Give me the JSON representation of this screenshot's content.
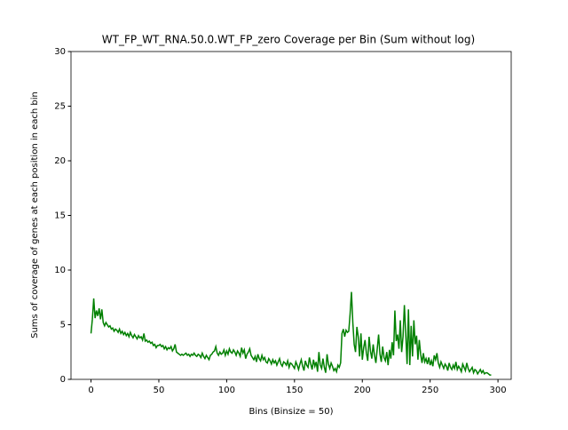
{
  "chart_data": {
    "type": "line",
    "title": "WT_FP_WT_RNA.50.0.WT_FP_zero Coverage per Bin (Sum without log)",
    "x_label": "Bins (Binsize = 50)",
    "y_label": "Sums of coverage of genes at each position in each bin",
    "xlim": [
      -14.75,
      309.75
    ],
    "ylim": [
      0,
      30
    ],
    "xticks": [
      0,
      50,
      100,
      150,
      200,
      250,
      300
    ],
    "yticks": [
      0,
      5,
      10,
      15,
      20,
      25,
      30
    ],
    "x": [
      0,
      1,
      2,
      3,
      4,
      5,
      6,
      7,
      8,
      9,
      10,
      11,
      12,
      13,
      14,
      15,
      16,
      17,
      18,
      19,
      20,
      21,
      22,
      23,
      24,
      25,
      26,
      27,
      28,
      29,
      30,
      31,
      32,
      33,
      34,
      35,
      36,
      37,
      38,
      39,
      40,
      41,
      42,
      43,
      44,
      45,
      46,
      47,
      48,
      49,
      50,
      51,
      52,
      53,
      54,
      55,
      56,
      57,
      58,
      59,
      60,
      61,
      62,
      63,
      64,
      65,
      66,
      67,
      68,
      69,
      70,
      71,
      72,
      73,
      74,
      75,
      76,
      77,
      78,
      79,
      80,
      81,
      82,
      83,
      84,
      85,
      86,
      87,
      88,
      89,
      90,
      91,
      92,
      93,
      94,
      95,
      96,
      97,
      98,
      99,
      100,
      101,
      102,
      103,
      104,
      105,
      106,
      107,
      108,
      109,
      110,
      111,
      112,
      113,
      114,
      115,
      116,
      117,
      118,
      119,
      120,
      121,
      122,
      123,
      124,
      125,
      126,
      127,
      128,
      129,
      130,
      131,
      132,
      133,
      134,
      135,
      136,
      137,
      138,
      139,
      140,
      141,
      142,
      143,
      144,
      145,
      146,
      147,
      148,
      149,
      150,
      151,
      152,
      153,
      154,
      155,
      156,
      157,
      158,
      159,
      160,
      161,
      162,
      163,
      164,
      165,
      166,
      167,
      168,
      169,
      170,
      171,
      172,
      173,
      174,
      175,
      176,
      177,
      178,
      179,
      180,
      181,
      182,
      183,
      184,
      185,
      186,
      187,
      188,
      189,
      190,
      191,
      192,
      193,
      194,
      195,
      196,
      197,
      198,
      199,
      200,
      201,
      202,
      203,
      204,
      205,
      206,
      207,
      208,
      209,
      210,
      211,
      212,
      213,
      214,
      215,
      216,
      217,
      218,
      219,
      220,
      221,
      222,
      223,
      224,
      225,
      226,
      227,
      228,
      229,
      230,
      231,
      232,
      233,
      234,
      235,
      236,
      237,
      238,
      239,
      240,
      241,
      242,
      243,
      244,
      245,
      246,
      247,
      248,
      249,
      250,
      251,
      252,
      253,
      254,
      255,
      256,
      257,
      258,
      259,
      260,
      261,
      262,
      263,
      264,
      265,
      266,
      267,
      268,
      269,
      270,
      271,
      272,
      273,
      274,
      275,
      276,
      277,
      278,
      279,
      280,
      281,
      282,
      283,
      284,
      285,
      286,
      287,
      288,
      289,
      290,
      291,
      292,
      293,
      294,
      295
    ],
    "series": [
      {
        "color": "#008000",
        "values": [
          4.2,
          5.5,
          7.4,
          5.6,
          6.3,
          5.8,
          6.5,
          5.5,
          6.4,
          5.2,
          4.9,
          5.2,
          5.0,
          4.8,
          4.9,
          4.6,
          4.7,
          4.4,
          4.6,
          4.5,
          4.3,
          4.6,
          4.2,
          4.4,
          4.1,
          4.3,
          4.0,
          4.2,
          3.9,
          4.3,
          4.0,
          3.8,
          4.1,
          3.9,
          3.7,
          4.0,
          3.8,
          3.9,
          3.6,
          4.2,
          3.5,
          3.6,
          3.4,
          3.5,
          3.3,
          3.4,
          3.1,
          3.2,
          2.9,
          3.1,
          3.1,
          3.2,
          3.0,
          3.1,
          2.8,
          3.0,
          2.7,
          2.9,
          2.8,
          3.0,
          2.6,
          2.8,
          3.2,
          2.5,
          2.4,
          2.3,
          2.2,
          2.3,
          2.2,
          2.3,
          2.4,
          2.2,
          2.3,
          2.1,
          2.3,
          2.2,
          2.4,
          2.2,
          2.1,
          2.3,
          2.2,
          2.0,
          2.4,
          2.1,
          1.9,
          2.2,
          2.0,
          1.8,
          2.2,
          2.3,
          2.5,
          2.6,
          3.0,
          2.4,
          2.2,
          2.5,
          2.3,
          2.4,
          2.7,
          2.2,
          2.6,
          2.3,
          2.8,
          2.5,
          2.4,
          2.7,
          2.5,
          2.2,
          2.6,
          2.4,
          2.1,
          2.9,
          2.4,
          2.7,
          1.9,
          2.3,
          2.5,
          2.8,
          2.2,
          2.0,
          1.8,
          2.1,
          1.6,
          2.3,
          1.9,
          1.7,
          2.2,
          1.8,
          2.0,
          1.6,
          1.5,
          1.9,
          1.7,
          1.4,
          1.8,
          1.5,
          1.7,
          1.3,
          1.6,
          1.9,
          1.4,
          1.2,
          1.6,
          1.5,
          1.3,
          1.7,
          1.1,
          1.5,
          1.4,
          1.2,
          1.0,
          1.6,
          1.3,
          0.9,
          1.4,
          1.8,
          1.2,
          0.8,
          1.7,
          1.3,
          1.1,
          2.0,
          1.4,
          0.9,
          1.8,
          1.2,
          1.6,
          0.7,
          2.5,
          1.3,
          1.0,
          1.9,
          1.1,
          0.6,
          2.3,
          1.4,
          1.0,
          1.5,
          1.2,
          0.8,
          1.0,
          0.7,
          1.3,
          1.1,
          1.5,
          4.2,
          4.6,
          3.9,
          4.5,
          4.3,
          4.4,
          6.0,
          8.0,
          5.2,
          3.2,
          2.5,
          4.8,
          3.9,
          2.1,
          4.2,
          1.8,
          2.9,
          3.6,
          2.4,
          1.7,
          3.9,
          2.6,
          1.9,
          3.2,
          2.2,
          1.5,
          2.8,
          4.1,
          2.3,
          1.6,
          3.0,
          2.0,
          1.7,
          2.5,
          1.3,
          2.7,
          1.9,
          3.4,
          2.2,
          6.3,
          3.5,
          4.1,
          2.8,
          5.4,
          2.5,
          3.9,
          6.8,
          4.2,
          1.4,
          6.4,
          1.3,
          4.9,
          2.1,
          5.4,
          3.2,
          4.0,
          1.8,
          3.6,
          2.3,
          1.5,
          2.4,
          1.6,
          1.9,
          1.4,
          2.0,
          1.3,
          1.7,
          1.2,
          2.2,
          1.8,
          2.4,
          1.5,
          1.1,
          1.6,
          1.3,
          1.0,
          1.4,
          1.2,
          0.8,
          1.5,
          1.1,
          0.9,
          1.3,
          1.0,
          1.6,
          0.9,
          1.2,
          1.0,
          0.7,
          1.4,
          1.1,
          0.8,
          1.5,
          1.0,
          0.7,
          0.9,
          1.1,
          0.6,
          0.9,
          0.8,
          0.5,
          0.7,
          0.9,
          0.6,
          0.8,
          0.5,
          0.6,
          0.6,
          0.5,
          0.4,
          0.4
        ]
      }
    ]
  }
}
